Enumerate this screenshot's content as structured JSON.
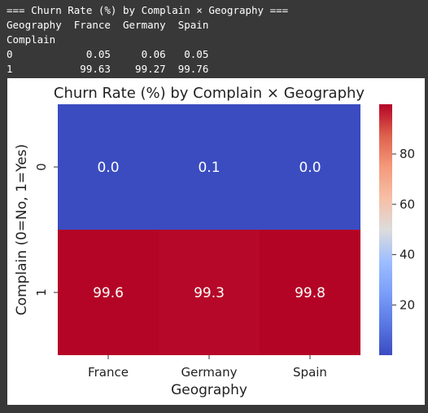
{
  "console": {
    "lines": [
      "=== Churn Rate (%) by Complain × Geography ===",
      "Geography  France  Germany  Spain",
      "Complain",
      "0            0.05     0.06   0.05",
      "1           99.63    99.27  99.76"
    ]
  },
  "chart_data": {
    "type": "heatmap",
    "title": "Churn Rate (%) by Complain × Geography",
    "xlabel": "Geography",
    "ylabel": "Complain (0=No, 1=Yes)",
    "x_categories": [
      "France",
      "Germany",
      "Spain"
    ],
    "y_categories": [
      "0",
      "1"
    ],
    "values": [
      [
        0.05,
        0.06,
        0.05
      ],
      [
        99.63,
        99.27,
        99.76
      ]
    ],
    "annotations": [
      [
        "0.0",
        "0.1",
        "0.0"
      ],
      [
        "99.6",
        "99.3",
        "99.8"
      ]
    ],
    "colormap": "coolwarm",
    "colorbar": {
      "range": [
        0.05,
        99.76
      ],
      "ticks": [
        20,
        40,
        60,
        80
      ]
    },
    "colors": {
      "low": "#3b4cc0",
      "mid": "#dddddd",
      "high": "#b40426"
    }
  }
}
